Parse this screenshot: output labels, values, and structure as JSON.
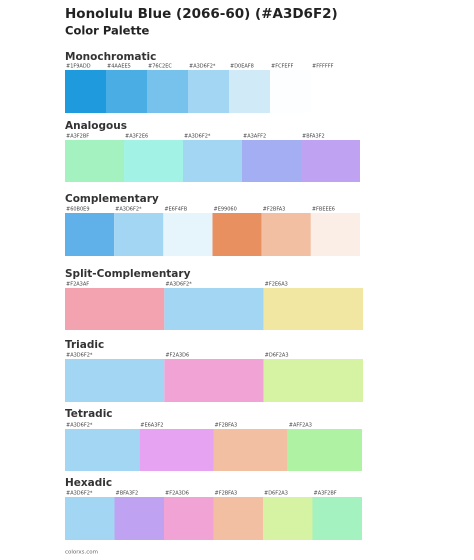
{
  "header": {
    "title": "Honolulu Blue (2066-60) (#A3D6F2)",
    "subtitle": "Color Palette"
  },
  "sections": [
    {
      "name": "Monochromatic",
      "swatches": [
        {
          "label": "#1F9ADD",
          "color": "#1F9ADD"
        },
        {
          "label": "#4AAEE5",
          "color": "#4AAEE5"
        },
        {
          "label": "#76C2EC",
          "color": "#76C2EC"
        },
        {
          "label": "#A3D6F2*",
          "color": "#A3D6F2"
        },
        {
          "label": "#D0EAF8",
          "color": "#D0EAF8"
        },
        {
          "label": "#FCFEFF",
          "color": "#FCFEFF"
        },
        {
          "label": "#FFFFFF",
          "color": "#FFFFFF"
        }
      ]
    },
    {
      "name": "Analogous",
      "swatches": [
        {
          "label": "#A3F2BF",
          "color": "#A3F2BF"
        },
        {
          "label": "#A3F2E6",
          "color": "#A3F2E6"
        },
        {
          "label": "#A3D6F2*",
          "color": "#A3D6F2"
        },
        {
          "label": "#A3AFF2",
          "color": "#A3AFF2"
        },
        {
          "label": "#BFA3F2",
          "color": "#BFA3F2"
        }
      ]
    },
    {
      "name": "Complementary",
      "swatches": [
        {
          "label": "#60B0E9",
          "color": "#60B0E9"
        },
        {
          "label": "#A3D6F2*",
          "color": "#A3D6F2"
        },
        {
          "label": "#E6F4FB",
          "color": "#E6F4FB"
        },
        {
          "label": "#E99060",
          "color": "#E99060"
        },
        {
          "label": "#F2BFA3",
          "color": "#F2BFA3"
        },
        {
          "label": "#FBEEE6",
          "color": "#FBEEE6"
        }
      ]
    },
    {
      "name": "Split-Complementary",
      "swatches": [
        {
          "label": "#F2A3AF",
          "color": "#F2A3AF"
        },
        {
          "label": "#A3D6F2*",
          "color": "#A3D6F2"
        },
        {
          "label": "#F2E6A3",
          "color": "#F2E6A3"
        }
      ]
    },
    {
      "name": "Triadic",
      "swatches": [
        {
          "label": "#A3D6F2*",
          "color": "#A3D6F2"
        },
        {
          "label": "#F2A3D6",
          "color": "#F2A3D6"
        },
        {
          "label": "#D6F2A3",
          "color": "#D6F2A3"
        }
      ]
    },
    {
      "name": "Tetradic",
      "swatches": [
        {
          "label": "#A3D6F2*",
          "color": "#A3D6F2"
        },
        {
          "label": "#E6A3F2",
          "color": "#E6A3F2"
        },
        {
          "label": "#F2BFA3",
          "color": "#F2BFA3"
        },
        {
          "label": "#AFF2A3",
          "color": "#AFF2A3"
        }
      ]
    },
    {
      "name": "Hexadic",
      "swatches": [
        {
          "label": "#A3D6F2*",
          "color": "#A3D6F2"
        },
        {
          "label": "#BFA3F2",
          "color": "#BFA3F2"
        },
        {
          "label": "#F2A3D6",
          "color": "#F2A3D6"
        },
        {
          "label": "#F2BFA3",
          "color": "#F2BFA3"
        },
        {
          "label": "#D6F2A3",
          "color": "#D6F2A3"
        },
        {
          "label": "#A3F2BF",
          "color": "#A3F2BF"
        }
      ]
    }
  ],
  "footer": "colorxs.com"
}
